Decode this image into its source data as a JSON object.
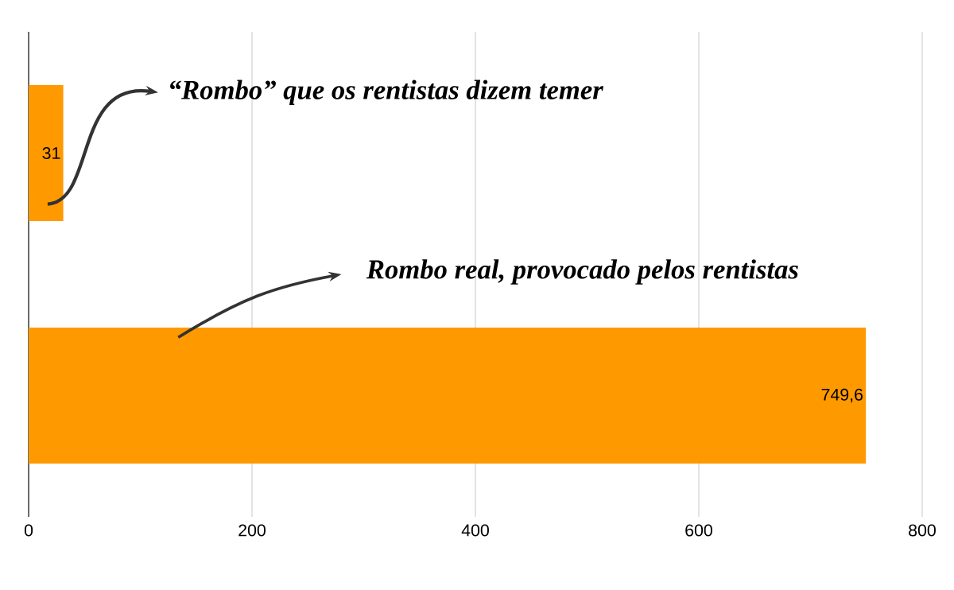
{
  "chart_data": {
    "type": "bar",
    "orientation": "horizontal",
    "categories": [
      null,
      null
    ],
    "values": [
      31,
      749.6
    ],
    "value_labels": [
      "31",
      "749,6"
    ],
    "color": "#ff9900",
    "xlim": [
      0,
      800
    ],
    "xticks": [
      0,
      200,
      400,
      600,
      800
    ],
    "grid": "x",
    "annotations": [
      "“Rombo” que os rentistas dizem temer",
      "Rombo real, provocado pelos rentistas"
    ]
  }
}
